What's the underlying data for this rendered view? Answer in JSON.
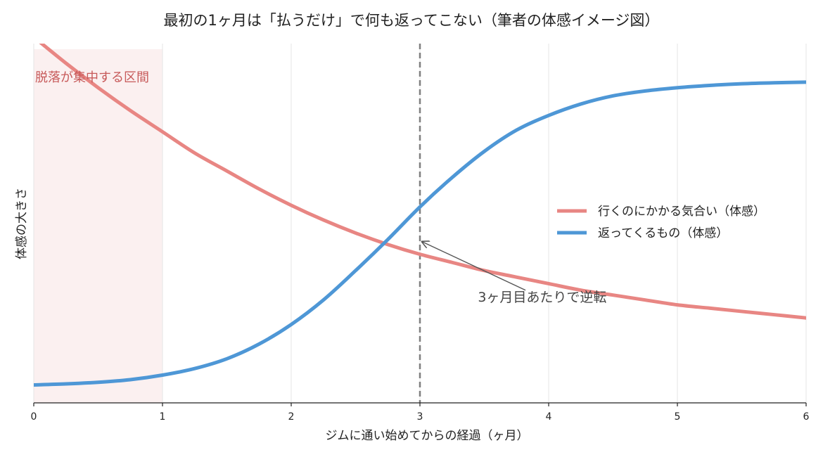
{
  "chart_data": {
    "type": "line",
    "title": "最初の1ヶ月は「払うだけ」で何も返ってこない（筆者の体感イメージ図）",
    "xlabel": "ジムに通い始めてからの経過（ヶ月）",
    "ylabel": "体感の大きさ",
    "xlim": [
      0,
      6
    ],
    "ylim": [
      0,
      1.1
    ],
    "xticks": [
      "0",
      "1",
      "2",
      "3",
      "4",
      "5",
      "6"
    ],
    "yticks_visible": false,
    "grid": "vertical",
    "legend_position": "center-right",
    "series": [
      {
        "name": "行くのにかかる気合い（体感）",
        "color": "#e88683",
        "x": [
          0,
          0.25,
          0.5,
          0.75,
          1.0,
          1.25,
          1.5,
          1.75,
          2.0,
          2.25,
          2.5,
          2.75,
          3.0,
          3.25,
          3.5,
          3.75,
          4.0,
          4.25,
          4.5,
          4.75,
          5.0,
          5.25,
          5.5,
          5.75,
          6.0
        ],
        "y": [
          1.12,
          1.04,
          0.965,
          0.895,
          0.83,
          0.765,
          0.71,
          0.655,
          0.605,
          0.56,
          0.52,
          0.485,
          0.455,
          0.43,
          0.405,
          0.385,
          0.365,
          0.345,
          0.33,
          0.315,
          0.3,
          0.29,
          0.28,
          0.27,
          0.26
        ]
      },
      {
        "name": "返ってくるもの（体感）",
        "color": "#4e97d6",
        "x": [
          0,
          0.25,
          0.5,
          0.75,
          1.0,
          1.25,
          1.5,
          1.75,
          2.0,
          2.25,
          2.5,
          2.75,
          3.0,
          3.25,
          3.5,
          3.75,
          4.0,
          4.25,
          4.5,
          4.75,
          5.0,
          5.25,
          5.5,
          5.75,
          6.0
        ],
        "y": [
          0.055,
          0.058,
          0.063,
          0.071,
          0.085,
          0.105,
          0.135,
          0.18,
          0.24,
          0.315,
          0.405,
          0.5,
          0.6,
          0.69,
          0.77,
          0.835,
          0.88,
          0.915,
          0.94,
          0.955,
          0.965,
          0.972,
          0.977,
          0.98,
          0.982
        ]
      }
    ],
    "vline": {
      "x": 3,
      "style": "dashed",
      "color": "#7f7f7f"
    },
    "shaded_region": {
      "x": [
        0,
        1
      ],
      "label": "脱落が集中する区間",
      "color": "#f8e3e3"
    },
    "annotation": {
      "text": "3ヶ月目あたりで逆転",
      "point": [
        3,
        0.5
      ],
      "text_at": [
        3.45,
        0.31
      ]
    }
  }
}
